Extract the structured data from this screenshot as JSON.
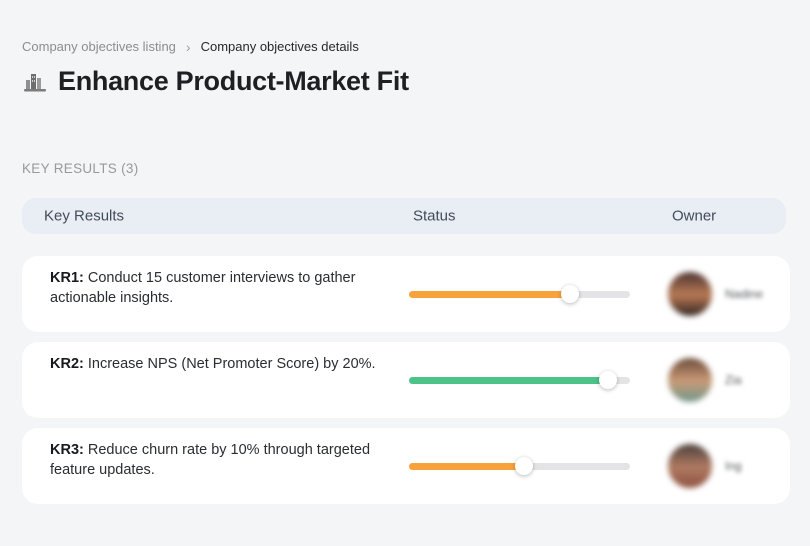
{
  "breadcrumb": {
    "items": [
      {
        "label": "Company objectives listing"
      },
      {
        "label": "Company objectives details"
      }
    ],
    "separator": "›"
  },
  "header": {
    "icon": "building-chart-icon",
    "title": "Enhance Product-Market Fit"
  },
  "section": {
    "label": "KEY RESULTS (3)"
  },
  "table": {
    "columns": {
      "key_results": "Key Results",
      "status": "Status",
      "owner": "Owner"
    },
    "rows": [
      {
        "kr_label": "KR1:",
        "kr_text": "Conduct 15 customer interviews to gather actionable insights.",
        "progress_percent": 73,
        "progress_color": "#F8A23C",
        "owner_name": "Nadine",
        "avatar_colors": [
          "#4a3230",
          "#b97a55",
          "#332522"
        ]
      },
      {
        "kr_label": "KR2:",
        "kr_text": "Increase NPS (Net Promoter Score) by 20%.",
        "progress_percent": 90,
        "progress_color": "#4CC389",
        "owner_name": "Zia",
        "avatar_colors": [
          "#6b4a3a",
          "#c99a76",
          "#70988c"
        ]
      },
      {
        "kr_label": "KR3:",
        "kr_text": "Reduce churn rate by 10% through targeted feature updates.",
        "progress_percent": 52,
        "progress_color": "#F8A23C",
        "owner_name": "Ing",
        "avatar_colors": [
          "#4a403c",
          "#b07a62",
          "#8d5240"
        ]
      }
    ]
  },
  "colors": {
    "page_background": "#F4F5F7",
    "card_background": "#FFFFFF",
    "header_background": "#E9EDF4",
    "track_gray": "#E4E4E6",
    "accent_orange": "#F8A23C",
    "accent_green": "#4CC389"
  }
}
